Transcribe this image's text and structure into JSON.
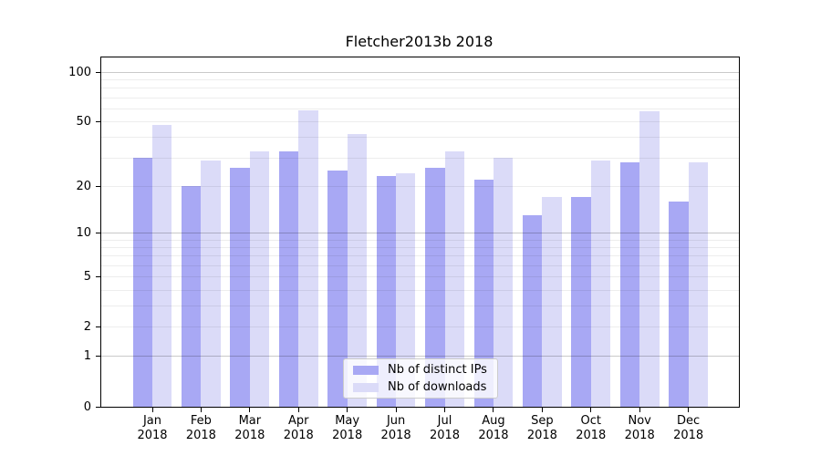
{
  "chart_data": {
    "type": "bar",
    "title": "Fletcher2013b 2018",
    "categories": [
      "Jan",
      "Feb",
      "Mar",
      "Apr",
      "May",
      "Jun",
      "Jul",
      "Aug",
      "Sep",
      "Oct",
      "Nov",
      "Dec"
    ],
    "year_label": "2018",
    "series": [
      {
        "name": "Nb of distinct IPs",
        "color": "#a8a8f4",
        "values": [
          30,
          20,
          26,
          33,
          25,
          23,
          26,
          22,
          13,
          17,
          28,
          16
        ]
      },
      {
        "name": "Nb of downloads",
        "color": "#dbdbf8",
        "values": [
          48,
          29,
          33,
          59,
          42,
          24,
          33,
          30,
          17,
          29,
          58,
          28
        ]
      }
    ],
    "yscale": "log1p",
    "ylim": [
      0,
      123
    ],
    "yticks": [
      0,
      1,
      2,
      5,
      10,
      20,
      50,
      100
    ],
    "grid": {
      "major": [
        1,
        10,
        100
      ],
      "minor": [
        2,
        3,
        4,
        5,
        6,
        7,
        8,
        9,
        20,
        30,
        40,
        50,
        60,
        70,
        80,
        90
      ]
    },
    "legend_position": "lower-center",
    "grid_on": true
  },
  "colors": {
    "spine": "#000000",
    "grid_major": "#c9c9c9",
    "grid_minor": "#ededed",
    "background": "#ffffff"
  }
}
